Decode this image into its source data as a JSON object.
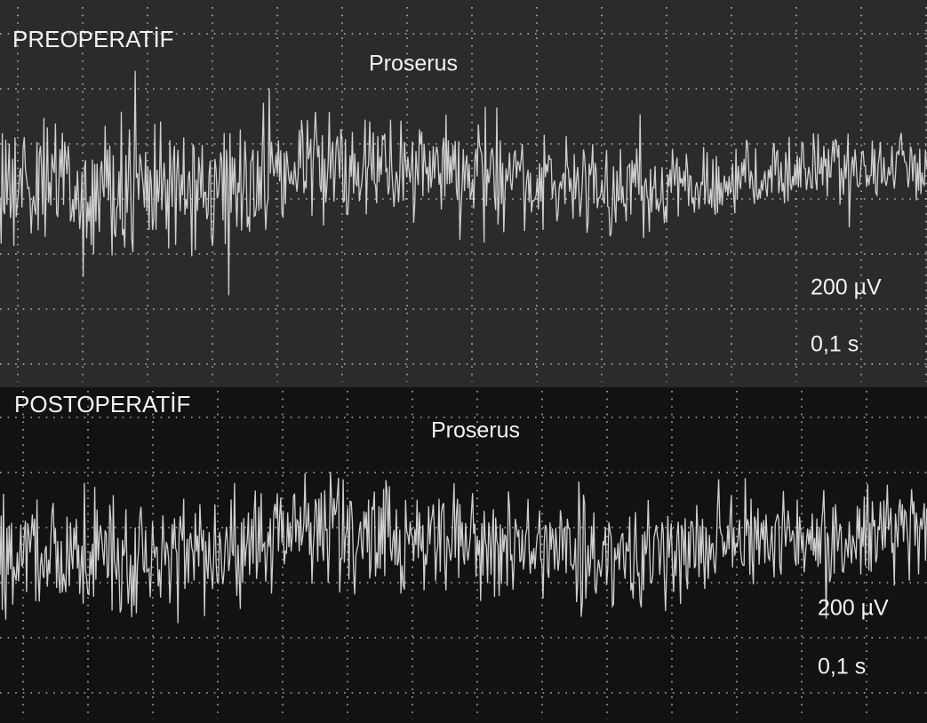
{
  "panels": [
    {
      "title": "PREOPERATİF",
      "muscle": "Proserus",
      "scale": {
        "amplitude": "200 µV",
        "time": "0,1 s"
      }
    },
    {
      "title": "POSTOPERATİF",
      "muscle": "Proserus",
      "scale": {
        "amplitude": "200 µV",
        "time": "0,1 s"
      }
    }
  ]
}
